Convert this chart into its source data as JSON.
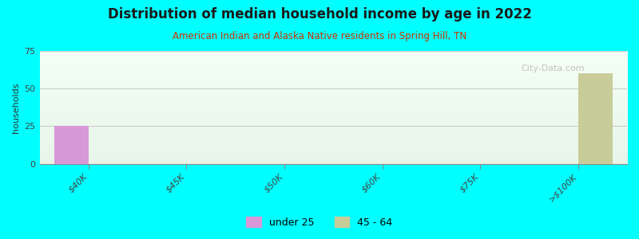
{
  "title": "Distribution of median household income by age in 2022",
  "subtitle": "American Indian and Alaska Native residents in Spring Hill, TN",
  "categories": [
    "$40K",
    "$45K",
    "$50K",
    "$60K",
    "$75K",
    ">$100K"
  ],
  "bar_width": 0.35,
  "series": [
    {
      "label": "under 25",
      "color": "#d899d8",
      "values": [
        25,
        0,
        0,
        0,
        0,
        0
      ]
    },
    {
      "label": "45 - 64",
      "color": "#c8cc99",
      "values": [
        0,
        0,
        0,
        0,
        0,
        60
      ]
    }
  ],
  "ylim": [
    0,
    75
  ],
  "yticks": [
    0,
    25,
    50,
    75
  ],
  "ylabel": "households",
  "background_color": "#00FFFF",
  "grid_color": "#cccccc",
  "title_color": "#1a1a1a",
  "subtitle_color": "#cc3300",
  "axis_label_color": "#333333",
  "tick_label_color": "#444444",
  "watermark": "City-Data.com",
  "legend_marker_color_1": "#d899d8",
  "legend_marker_color_2": "#c8cc99"
}
